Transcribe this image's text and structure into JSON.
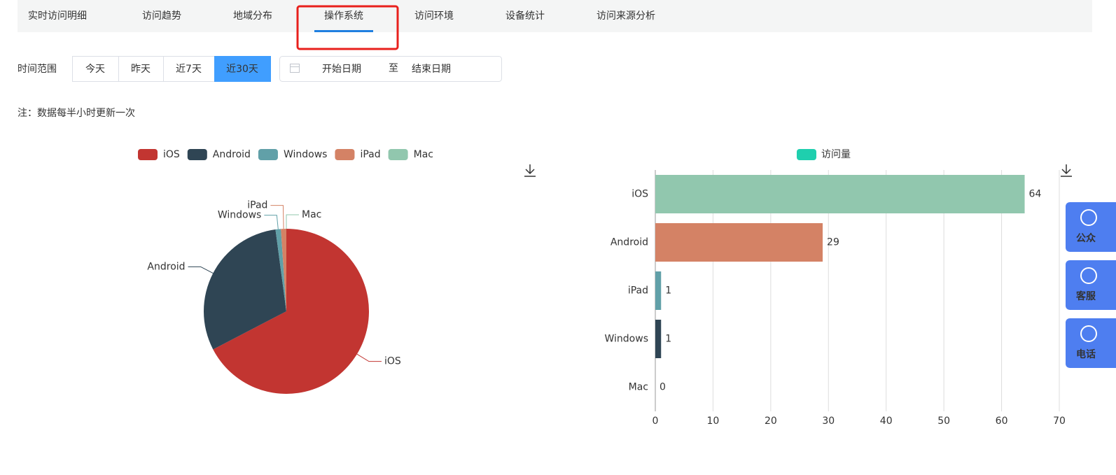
{
  "tabs": [
    "实时访问明细",
    "访问趋势",
    "地域分布",
    "操作系统",
    "访问环境",
    "设备统计",
    "访问来源分析"
  ],
  "active_tab": 3,
  "filter": {
    "label": "时间范围",
    "buttons": [
      "今天",
      "昨天",
      "近7天",
      "近30天"
    ],
    "active_button": 3,
    "start_placeholder": "开始日期",
    "separator": "至",
    "end_placeholder": "结束日期"
  },
  "note": "注：数据每半小时更新一次",
  "side_buttons": [
    "公众",
    "客服",
    "电话"
  ],
  "chart_data": [
    {
      "type": "pie",
      "categories": [
        "iOS",
        "Android",
        "Windows",
        "iPad",
        "Mac"
      ],
      "values": [
        64,
        29,
        1,
        1,
        0
      ],
      "colors": [
        "#c23531",
        "#2f4554",
        "#61a0a8",
        "#d48265",
        "#91c7ae"
      ]
    },
    {
      "type": "bar",
      "orientation": "horizontal",
      "categories": [
        "iOS",
        "Android",
        "iPad",
        "Windows",
        "Mac"
      ],
      "series": [
        {
          "name": "访问量",
          "color": "#1fcfae",
          "values": [
            64,
            29,
            1,
            1,
            0
          ],
          "colors": [
            "#91c7ae",
            "#d48265",
            "#61a0a8",
            "#2f4554",
            "#c23531"
          ]
        }
      ],
      "xlim": [
        0,
        70
      ],
      "xticks": [
        0,
        10,
        20,
        30,
        40,
        50,
        60,
        70
      ],
      "grid": true
    }
  ]
}
